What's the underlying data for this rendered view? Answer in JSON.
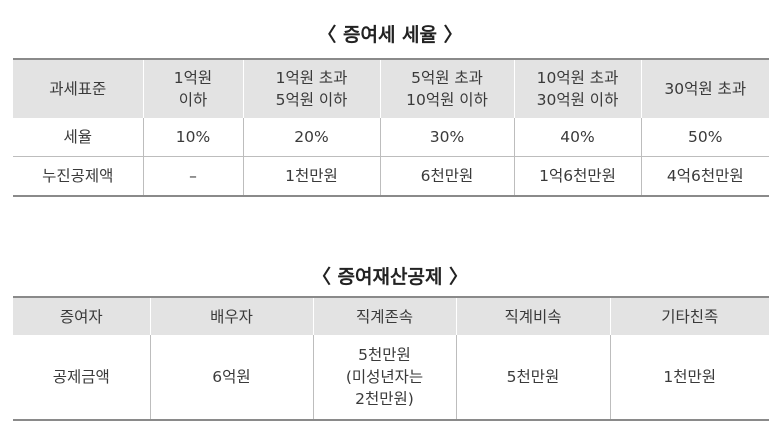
{
  "gift_tax_rate": {
    "title": "〈 증여세 세율 〉",
    "headers": [
      "과세표준",
      "1억원\n이하",
      "1억원 초과\n5억원 이하",
      "5억원 초과\n10억원 이하",
      "10억원 초과\n30억원 이하",
      "30억원 초과"
    ],
    "rows": [
      [
        "세율",
        "10%",
        "20%",
        "30%",
        "40%",
        "50%"
      ],
      [
        "누진공제액",
        "–",
        "1천만원",
        "6천만원",
        "1억6천만원",
        "4억6천만원"
      ]
    ]
  },
  "gift_property_deduction": {
    "title": "〈 증여재산공제 〉",
    "headers": [
      "증여자",
      "배우자",
      "직계존속",
      "직계비속",
      "기타친족"
    ],
    "rows": [
      [
        "공제금액",
        "6억원",
        "5천만원\n(미성년자는\n2천만원)",
        "5천만원",
        "1천만원"
      ]
    ]
  }
}
